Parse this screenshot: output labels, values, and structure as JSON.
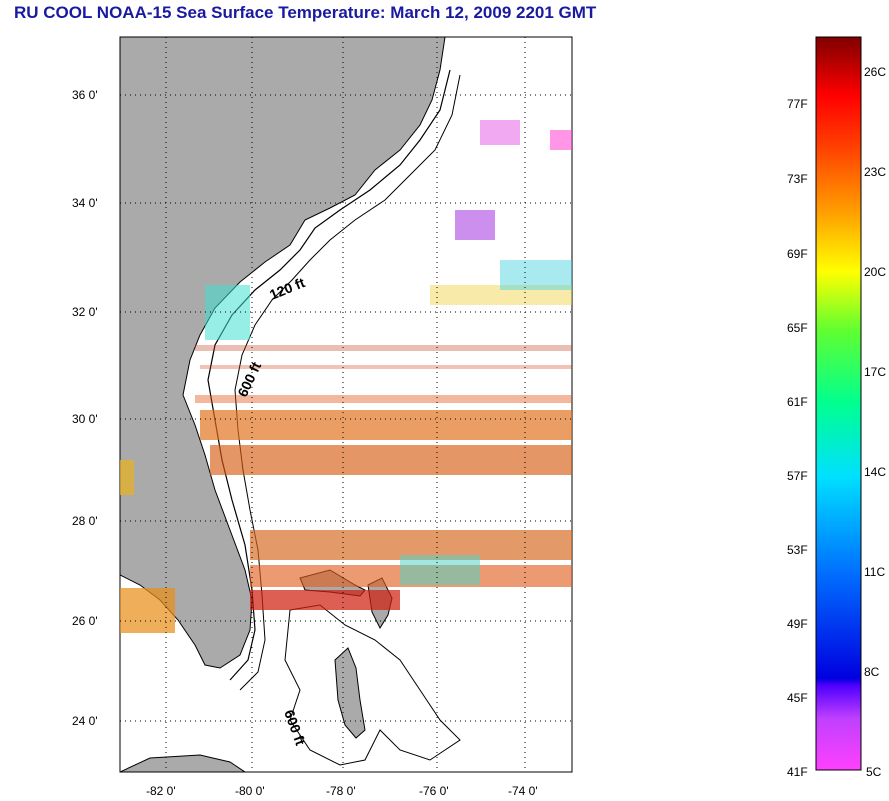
{
  "title": "RU COOL  NOAA-15  Sea Surface Temperature:  March 12, 2009 2201 GMT",
  "map": {
    "lat_labels": [
      "36 0'",
      "34 0'",
      "32 0'",
      "30 0'",
      "28 0'",
      "26 0'",
      "24 0'"
    ],
    "lon_labels": [
      "-82 0'",
      "-80 0'",
      "-78 0'",
      "-76 0'",
      "-74 0'"
    ],
    "contour_labels": [
      "120 ft",
      "600 ft",
      "600 ft"
    ],
    "colors": {
      "land": "#aaaaaa",
      "ocean": "#ffffff",
      "grid": "#000000"
    }
  },
  "colorbar": {
    "fahrenheit_labels": [
      "77F",
      "73F",
      "69F",
      "65F",
      "61F",
      "57F",
      "53F",
      "49F",
      "45F",
      "41F"
    ],
    "celsius_labels": [
      "26C",
      "23C",
      "20C",
      "17C",
      "14C",
      "11C",
      "8C",
      "5C"
    ]
  }
}
